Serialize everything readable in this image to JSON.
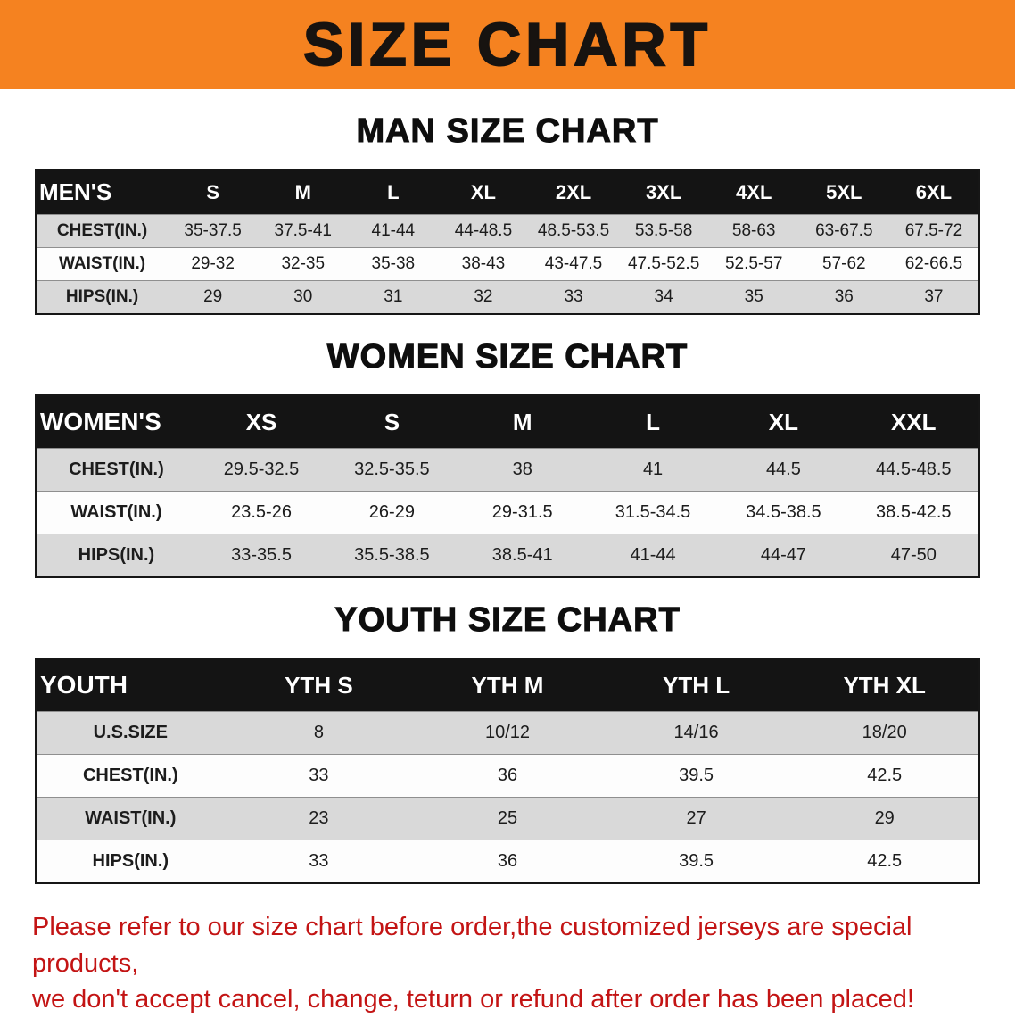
{
  "banner": {
    "title": "SIZE CHART"
  },
  "colors": {
    "banner-bg": "#f58220",
    "header-bg": "#141414",
    "row-gray": "#d9d9d9",
    "warning-red": "#c31414"
  },
  "sections": [
    {
      "heading": "MAN SIZE CHART",
      "table": {
        "header": [
          "MEN'S",
          "S",
          "M",
          "L",
          "XL",
          "2XL",
          "3XL",
          "4XL",
          "5XL",
          "6XL"
        ],
        "rows": [
          [
            "CHEST(IN.)",
            "35-37.5",
            "37.5-41",
            "41-44",
            "44-48.5",
            "48.5-53.5",
            "53.5-58",
            "58-63",
            "63-67.5",
            "67.5-72"
          ],
          [
            "WAIST(IN.)",
            "29-32",
            "32-35",
            "35-38",
            "38-43",
            "43-47.5",
            "47.5-52.5",
            "52.5-57",
            "57-62",
            "62-66.5"
          ],
          [
            "HIPS(IN.)",
            "29",
            "30",
            "31",
            "32",
            "33",
            "34",
            "35",
            "36",
            "37"
          ]
        ]
      }
    },
    {
      "heading": "WOMEN SIZE CHART",
      "table": {
        "header": [
          "WOMEN'S",
          "XS",
          "S",
          "M",
          "L",
          "XL",
          "XXL"
        ],
        "rows": [
          [
            "CHEST(IN.)",
            "29.5-32.5",
            "32.5-35.5",
            "38",
            "41",
            "44.5",
            "44.5-48.5"
          ],
          [
            "WAIST(IN.)",
            "23.5-26",
            "26-29",
            "29-31.5",
            "31.5-34.5",
            "34.5-38.5",
            "38.5-42.5"
          ],
          [
            "HIPS(IN.)",
            "33-35.5",
            "35.5-38.5",
            "38.5-41",
            "41-44",
            "44-47",
            "47-50"
          ]
        ]
      }
    },
    {
      "heading": "YOUTH SIZE CHART",
      "table": {
        "header": [
          "YOUTH",
          "YTH S",
          "YTH M",
          "YTH L",
          "YTH XL"
        ],
        "rows": [
          [
            "U.S.SIZE",
            "8",
            "10/12",
            "14/16",
            "18/20"
          ],
          [
            "CHEST(IN.)",
            "33",
            "36",
            "39.5",
            "42.5"
          ],
          [
            "WAIST(IN.)",
            "23",
            "25",
            "27",
            "29"
          ],
          [
            "HIPS(IN.)",
            "33",
            "36",
            "39.5",
            "42.5"
          ]
        ]
      }
    }
  ],
  "footer": {
    "line1": "Please refer to our size chart before order,the customized jerseys are special products,",
    "line2": "we don't accept cancel, change, teturn or refund after order has been placed!"
  }
}
